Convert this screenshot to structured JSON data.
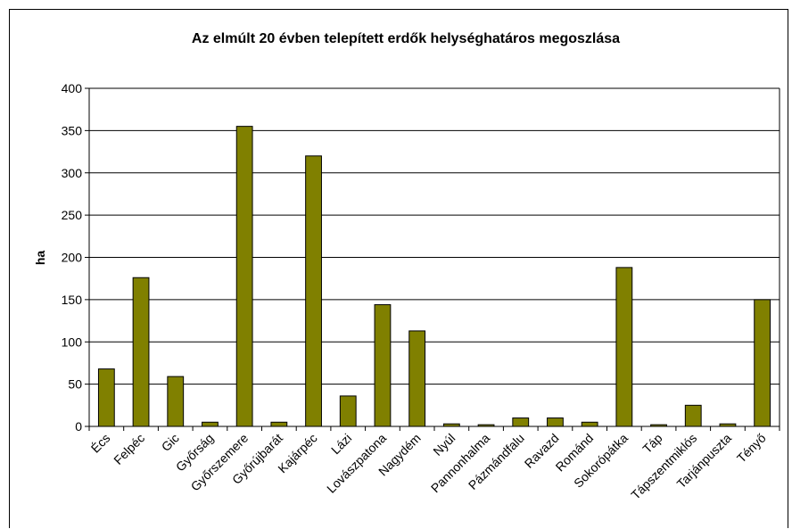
{
  "chart_data": {
    "type": "bar",
    "title": "Az elmúlt 20 évben telepített erdők helységhatáros megoszlása",
    "xlabel": "",
    "ylabel": "ha",
    "ylim": [
      0,
      400
    ],
    "yticks": [
      0,
      50,
      100,
      150,
      200,
      250,
      300,
      350,
      400
    ],
    "grid": true,
    "legend": "none",
    "bar_color": "#808000",
    "categories": [
      "Écs",
      "Felpéc",
      "Gic",
      "Győrság",
      "Győrszemere",
      "Győrújbarát",
      "Kajárpéc",
      "Lázi",
      "Lovászpatona",
      "Nagydém",
      "Nyúl",
      "Pannonhalma",
      "Pázmándfalu",
      "Ravazd",
      "Románd",
      "Sokorópátka",
      "Táp",
      "Tápszentmiklós",
      "Tarjánpuszta",
      "Tényő"
    ],
    "values": [
      68,
      176,
      59,
      5,
      355,
      5,
      320,
      36,
      144,
      113,
      3,
      2,
      10,
      10,
      5,
      188,
      2,
      25,
      3,
      150
    ]
  }
}
